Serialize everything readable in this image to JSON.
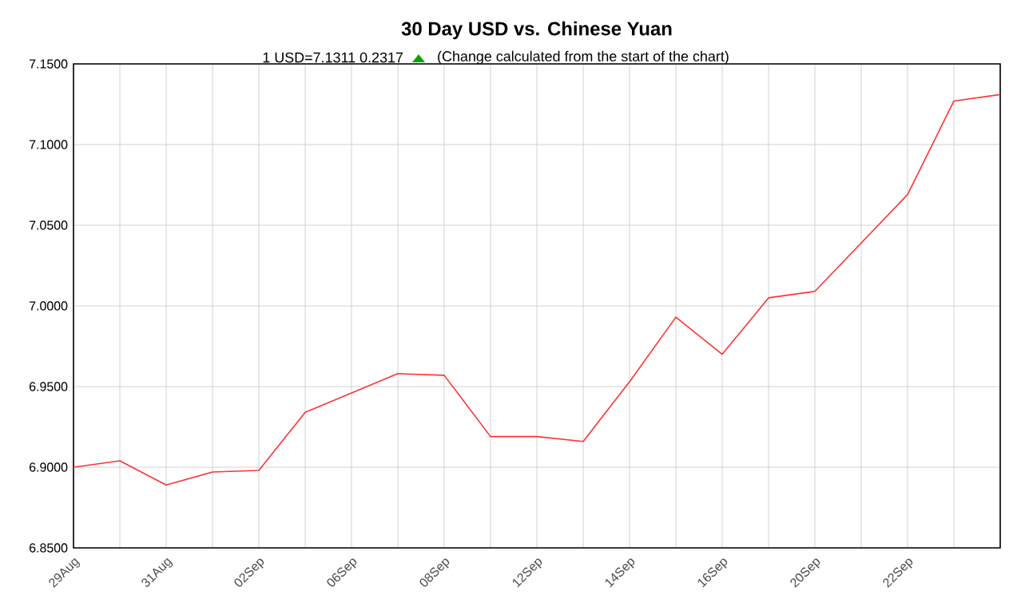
{
  "chart_data": {
    "type": "line",
    "title": "30 Day USD vs. Chinese Yuan",
    "subtitle": "1 USD=7.1311  0.2317",
    "annotations": [
      "(Change calculated from the start of the chart)"
    ],
    "categories": [
      "29Aug",
      null,
      "31Aug",
      null,
      "02Sep",
      null,
      "06Sep",
      null,
      "08Sep",
      null,
      "12Sep",
      null,
      "14Sep",
      null,
      "16Sep",
      null,
      "20Sep",
      null,
      "22Sep",
      null,
      null
    ],
    "series": [
      {
        "color": "#ff3333",
        "values": [
          6.9,
          6.904,
          6.889,
          6.897,
          6.898,
          6.934,
          6.946,
          6.958,
          6.957,
          6.919,
          6.919,
          6.916,
          6.953,
          6.993,
          6.97,
          7.005,
          7.009,
          7.039,
          7.069,
          7.127,
          7.131
        ]
      }
    ],
    "ylim": [
      6.85,
      7.15
    ],
    "yticks": [
      {
        "value": 6.85,
        "label": "6.8500"
      },
      {
        "value": 6.9,
        "label": "6.9000"
      },
      {
        "value": 6.95,
        "label": "6.9500"
      },
      {
        "value": 7.0,
        "label": "7.0000"
      },
      {
        "value": 7.05,
        "label": "7.0500"
      },
      {
        "value": 7.1,
        "label": "7.1000"
      },
      {
        "value": 7.15,
        "label": "7.1500"
      }
    ],
    "grid": true,
    "marker": "none",
    "line_style": "solid"
  }
}
